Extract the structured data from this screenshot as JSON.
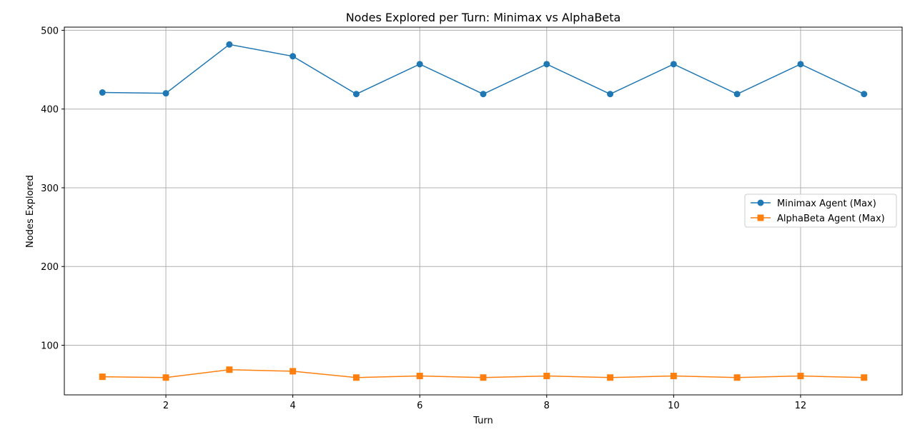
{
  "chart_data": {
    "type": "line",
    "title": "Nodes Explored per Turn: Minimax vs AlphaBeta",
    "xlabel": "Turn",
    "ylabel": "Nodes Explored",
    "x": [
      1,
      2,
      3,
      4,
      5,
      6,
      7,
      8,
      9,
      10,
      11,
      12,
      13
    ],
    "xlim": [
      0.4,
      13.6
    ],
    "ylim": [
      37,
      504
    ],
    "xticks": [
      2,
      4,
      6,
      8,
      10,
      12
    ],
    "yticks": [
      100,
      200,
      300,
      400,
      500
    ],
    "grid": true,
    "legend_position": "center-right",
    "series": [
      {
        "name": "Minimax Agent (Max)",
        "color": "#1f77b4",
        "marker": "circle",
        "values": [
          421,
          420,
          482,
          467,
          419,
          457,
          419,
          457,
          419,
          457,
          419,
          457,
          419
        ]
      },
      {
        "name": "AlphaBeta Agent (Max)",
        "color": "#ff7f0e",
        "marker": "square",
        "values": [
          60,
          59,
          69,
          67,
          59,
          61,
          59,
          61,
          59,
          61,
          59,
          61,
          59
        ]
      }
    ]
  }
}
